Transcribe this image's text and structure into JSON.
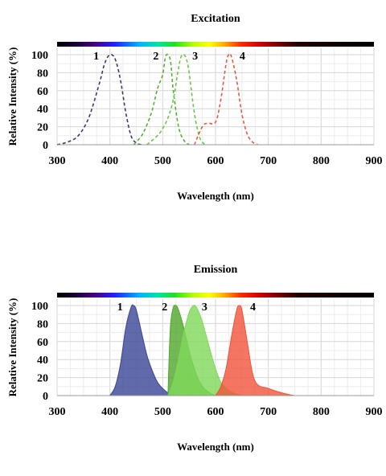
{
  "chart_data": [
    {
      "type": "line",
      "title": "Excitation",
      "xlabel": "Wavelength (nm)",
      "ylabel": "Relative Intensity (%)",
      "xlim": [
        300,
        900
      ],
      "ylim": [
        0,
        100
      ],
      "xticks": [
        "300",
        "400",
        "500",
        "600",
        "700",
        "800",
        "900"
      ],
      "yticks": [
        "0",
        "20",
        "40",
        "60",
        "80",
        "100"
      ],
      "grid": true,
      "line_style": "dashed",
      "spectrum_bar": true,
      "series": [
        {
          "name": "1",
          "color": "#3b3b6b",
          "x": [
            300,
            320,
            340,
            360,
            380,
            390,
            400,
            410,
            420,
            430,
            440,
            450,
            460
          ],
          "y": [
            0,
            3,
            10,
            30,
            68,
            90,
            100,
            95,
            72,
            36,
            10,
            2,
            0
          ]
        },
        {
          "name": "2",
          "color": "#55b035",
          "x": [
            445,
            460,
            470,
            480,
            490,
            500,
            505,
            510,
            515,
            520,
            530,
            540,
            550
          ],
          "y": [
            0,
            10,
            22,
            38,
            62,
            78,
            97,
            100,
            92,
            60,
            20,
            5,
            0
          ]
        },
        {
          "name": "3",
          "color": "#6bc64b",
          "x": [
            470,
            490,
            500,
            510,
            520,
            530,
            535,
            540,
            545,
            550,
            560,
            570,
            580
          ],
          "y": [
            0,
            10,
            18,
            30,
            50,
            85,
            98,
            100,
            95,
            80,
            35,
            8,
            0
          ]
        },
        {
          "name": "4",
          "color": "#e05c48",
          "x": [
            560,
            575,
            585,
            600,
            610,
            620,
            625,
            630,
            640,
            650,
            660,
            670,
            680
          ],
          "y": [
            0,
            20,
            24,
            25,
            50,
            90,
            100,
            98,
            72,
            34,
            12,
            3,
            0
          ]
        }
      ]
    },
    {
      "type": "area",
      "title": "Emission",
      "xlabel": "Wavelength (nm)",
      "ylabel": "Relative Intensity (%)",
      "xlim": [
        300,
        900
      ],
      "ylim": [
        0,
        100
      ],
      "xticks": [
        "300",
        "400",
        "500",
        "600",
        "700",
        "800",
        "900"
      ],
      "yticks": [
        "0",
        "20",
        "40",
        "60",
        "80",
        "100"
      ],
      "grid": true,
      "spectrum_bar": true,
      "series": [
        {
          "name": "1",
          "color": "#3a4596",
          "x": [
            400,
            410,
            420,
            430,
            440,
            445,
            450,
            460,
            470,
            480,
            490,
            500,
            510,
            520
          ],
          "y": [
            0,
            10,
            35,
            75,
            98,
            100,
            95,
            70,
            45,
            28,
            15,
            8,
            3,
            0
          ]
        },
        {
          "name": "2",
          "color": "#4fa82c",
          "x": [
            510,
            512,
            515,
            520,
            525,
            530,
            540,
            550,
            560,
            570,
            580,
            590,
            600
          ],
          "y": [
            0,
            40,
            80,
            98,
            100,
            95,
            75,
            50,
            30,
            15,
            7,
            3,
            0
          ]
        },
        {
          "name": "3",
          "color": "#7fd85a",
          "x": [
            510,
            520,
            530,
            540,
            550,
            558,
            565,
            575,
            590,
            600,
            610,
            620,
            630,
            650
          ],
          "y": [
            0,
            15,
            40,
            70,
            92,
            100,
            97,
            82,
            50,
            30,
            15,
            8,
            4,
            0
          ]
        },
        {
          "name": "4",
          "color": "#f0533b",
          "x": [
            600,
            610,
            620,
            630,
            640,
            645,
            650,
            660,
            670,
            680,
            700,
            720,
            740,
            750
          ],
          "y": [
            0,
            10,
            30,
            65,
            95,
            100,
            95,
            60,
            25,
            12,
            8,
            4,
            1,
            0
          ]
        }
      ]
    }
  ]
}
